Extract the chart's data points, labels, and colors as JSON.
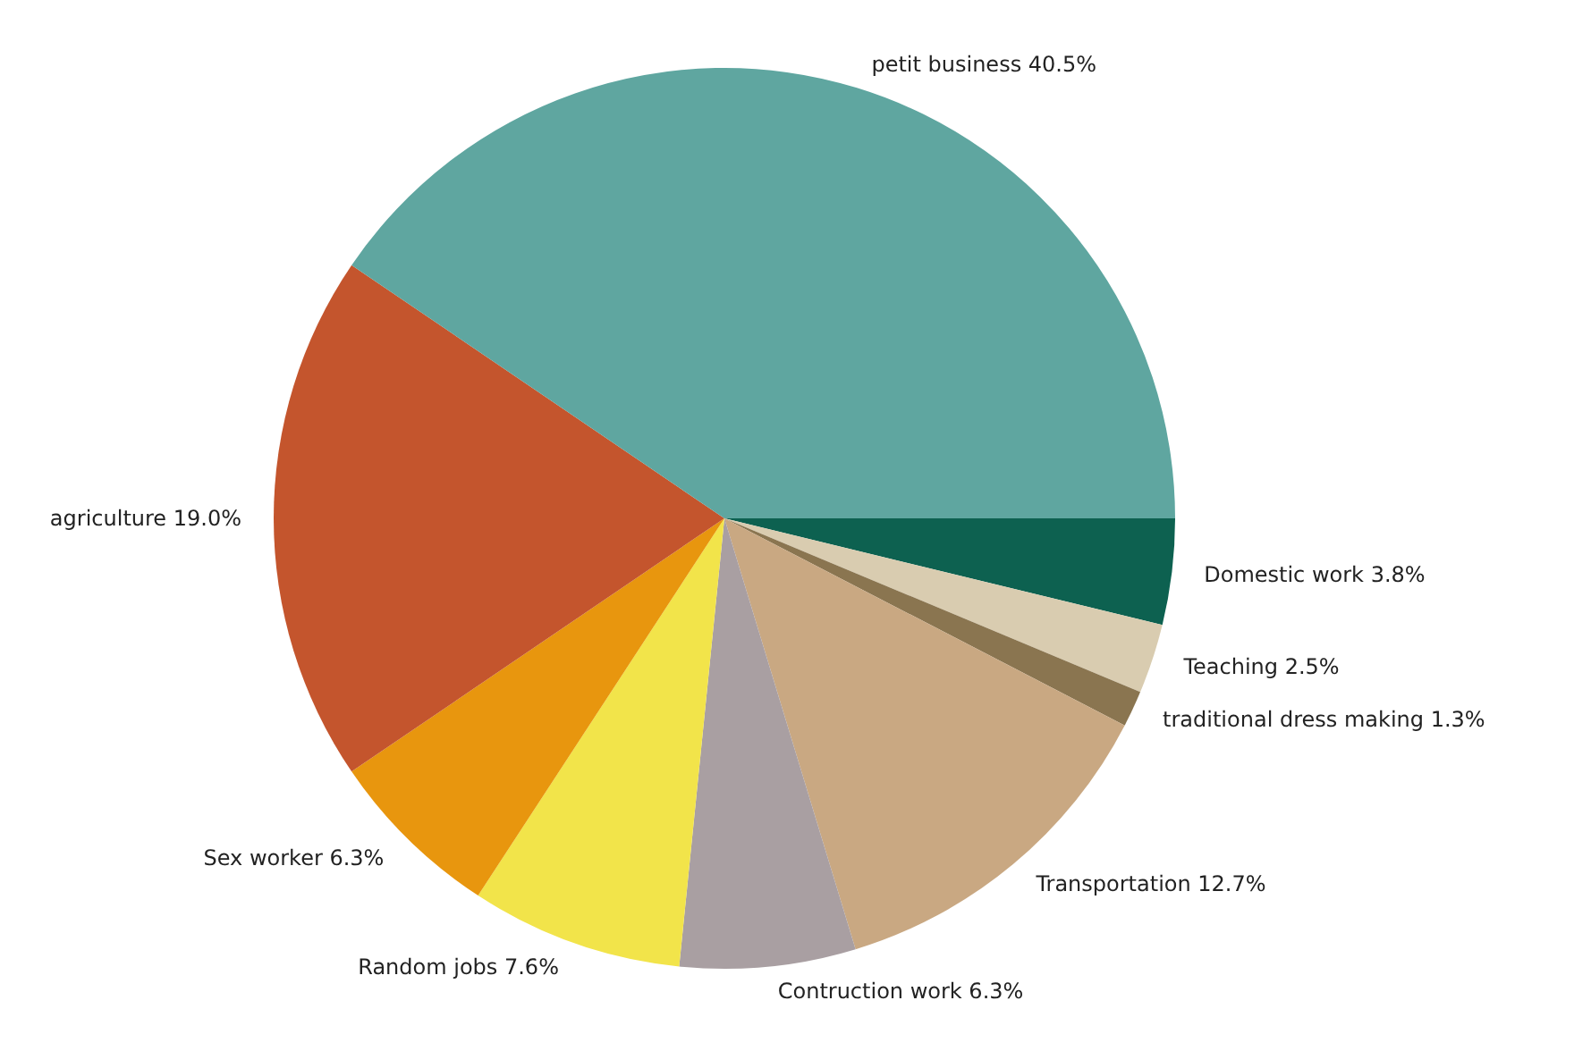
{
  "chart_data": {
    "type": "pie",
    "categories": [
      "petit business 40.5%",
      "agriculture 19.0%",
      "Sex worker 6.3%",
      "Random jobs 7.6%",
      "Contruction work 6.3%",
      "Transportation 12.7%",
      "traditional dress making 1.3%",
      "Teaching 2.5%",
      "Domestic work 3.8%"
    ],
    "values": [
      40.5,
      19.0,
      6.3,
      7.6,
      6.3,
      12.7,
      1.3,
      2.5,
      3.8
    ],
    "colors": [
      "#5fa6a0",
      "#c4552d",
      "#e8960e",
      "#f2e44a",
      "#a99fa2",
      "#c9a882",
      "#8a7550",
      "#d9ccb0",
      "#0d6150"
    ]
  }
}
